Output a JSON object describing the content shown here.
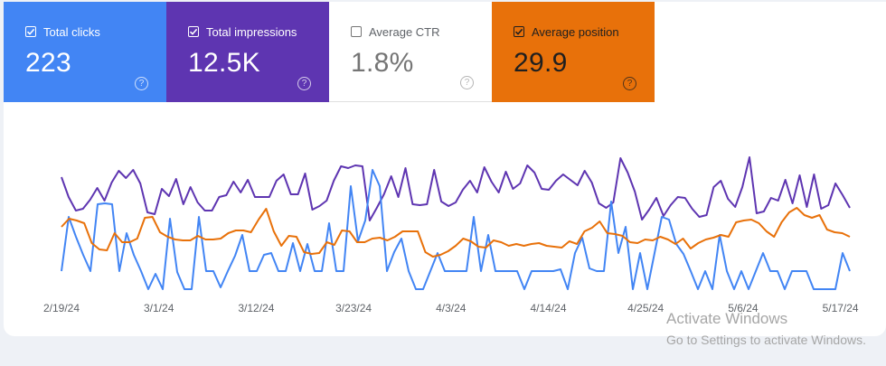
{
  "metrics": [
    {
      "label": "Total clicks",
      "value": "223",
      "checked": true
    },
    {
      "label": "Total impressions",
      "value": "12.5K",
      "checked": true
    },
    {
      "label": "Average CTR",
      "value": "1.8%",
      "checked": false
    },
    {
      "label": "Average position",
      "value": "29.9",
      "checked": true
    }
  ],
  "help_glyph": "?",
  "colors": {
    "clicks": "#4285f4",
    "impressions": "#5e35b1",
    "position": "#e8710a",
    "ctr_text": "#757575"
  },
  "chart_data": {
    "type": "line",
    "x_tick_labels": [
      "2/19/24",
      "3/1/24",
      "3/12/24",
      "3/23/24",
      "4/3/24",
      "4/14/24",
      "4/25/24",
      "5/6/24",
      "5/17/24"
    ],
    "x_range": [
      "2/19/24",
      "5/19/24"
    ],
    "axes_values_shown": false,
    "grid": false,
    "series": [
      {
        "key": "impressions",
        "color": "#5e35b1",
        "values": [
          196,
          218,
          233,
          231,
          221,
          208,
          222,
          202,
          189,
          197,
          188,
          203,
          235,
          237,
          209,
          217,
          198,
          226,
          207,
          224,
          233,
          233,
          218,
          216,
          201,
          213,
          199,
          218,
          218,
          218,
          200,
          193,
          215,
          215,
          192,
          232,
          228,
          222,
          200,
          184,
          186,
          183,
          184,
          244,
          230,
          215,
          195,
          218,
          186,
          226,
          227,
          226,
          188,
          223,
          228,
          224,
          210,
          200,
          213,
          185,
          201,
          213,
          190,
          209,
          203,
          183,
          191,
          209,
          210,
          200,
          193,
          199,
          205,
          189,
          202,
          225,
          230,
          224,
          175,
          191,
          212,
          243,
          232,
          219,
          239,
          227,
          218,
          219,
          231,
          240,
          238,
          207,
          200,
          220,
          229,
          207,
          174,
          236,
          234,
          219,
          222,
          199,
          225,
          194,
          229,
          193,
          231,
          227,
          203,
          216,
          230
        ]
      },
      {
        "key": "clicks",
        "color": "#4285f4",
        "values": [
          300,
          240,
          262,
          282,
          300,
          226,
          225,
          226,
          300,
          258,
          282,
          300,
          320,
          303,
          320,
          242,
          301,
          320,
          320,
          240,
          300,
          300,
          318,
          300,
          283,
          260,
          300,
          300,
          282,
          280,
          300,
          300,
          269,
          300,
          270,
          300,
          300,
          247,
          300,
          300,
          206,
          267,
          244,
          188,
          206,
          300,
          279,
          264,
          300,
          320,
          320,
          300,
          280,
          300,
          300,
          300,
          300,
          240,
          300,
          260,
          300,
          300,
          300,
          300,
          320,
          300,
          300,
          300,
          300,
          298,
          320,
          280,
          263,
          297,
          300,
          300,
          223,
          280,
          251,
          320,
          280,
          320,
          280,
          240,
          243,
          270,
          281,
          300,
          320,
          300,
          320,
          260,
          300,
          320,
          300,
          320,
          300,
          280,
          300,
          300,
          320,
          300,
          300,
          300,
          320,
          320,
          320,
          320,
          280,
          300
        ]
      },
      {
        "key": "position",
        "color": "#e8710a",
        "values": [
          251,
          242,
          244,
          247,
          269,
          276,
          277,
          258,
          268,
          268,
          264,
          241,
          240,
          257,
          262,
          265,
          266,
          266,
          261,
          265,
          265,
          264,
          258,
          255,
          255,
          257,
          243,
          231,
          256,
          272,
          261,
          262,
          279,
          281,
          280,
          268,
          271,
          255,
          256,
          268,
          268,
          264,
          263,
          266,
          262,
          256,
          256,
          256,
          279,
          284,
          282,
          278,
          272,
          264,
          267,
          273,
          274,
          266,
          268,
          272,
          270,
          272,
          270,
          269,
          272,
          273,
          274,
          267,
          270,
          256,
          252,
          245,
          258,
          259,
          261,
          268,
          269,
          265,
          266,
          262,
          265,
          270,
          264,
          275,
          269,
          265,
          263,
          260,
          262,
          246,
          244,
          243,
          247,
          256,
          262,
          246,
          235,
          230,
          238,
          241,
          238,
          254,
          257,
          258,
          262
        ]
      }
    ]
  },
  "watermark": {
    "title": "Activate Windows",
    "subtitle": "Go to Settings to activate Windows."
  }
}
